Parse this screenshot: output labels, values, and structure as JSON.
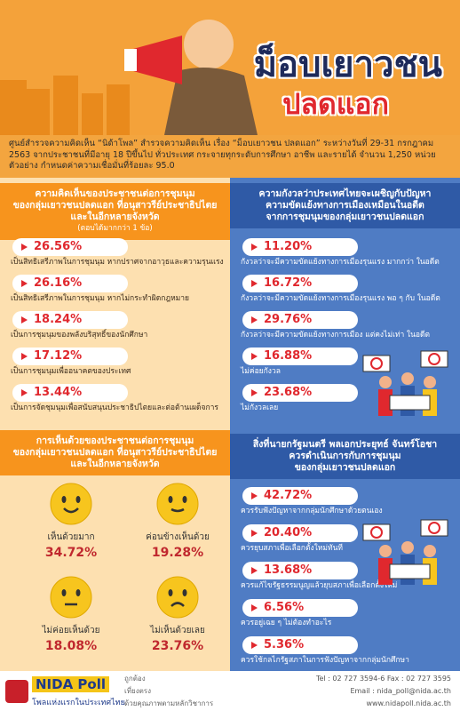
{
  "header": {
    "title": "ม็อบเยาวชน",
    "subtitle": "ปลดแอก"
  },
  "intro": "ศูนย์สำรวจความคิดเห็น “นิด้าโพล” สำรวจความคิดเห็น เรื่อง “ม็อบเยาวชน ปลดแอก” ระหว่างวันที่ 29-31 กรกฎาคม 2563 จากประชาชนที่มีอายุ 18 ปีขึ้นไป ทั่วประเทศ กระจายทุกระดับการศึกษา อาชีพ และรายได้ จำนวน 1,250 หน่วยตัวอย่าง กำหนดค่าความเชื่อมั่นที่ร้อยละ 95.0",
  "opinion": {
    "heading": [
      "ความคิดเห็นของประชาชนต่อการชุมนุม",
      "ของกลุ่มเยาวชนปลดแอก ที่อนุสาวรีย์ประชาธิปไตย",
      "และในอีกหลายจังหวัด"
    ],
    "note": "(ตอบได้มากกว่า 1 ข้อ)",
    "items": [
      {
        "value": "26.56%",
        "label": "เป็นสิทธิเสรีภาพในการชุมนุม หากปราศจากอาวุธและความรุนแรง"
      },
      {
        "value": "26.16%",
        "label": "เป็นสิทธิเสรีภาพในการชุมนุม หากไม่กระทำผิดกฎหมาย"
      },
      {
        "value": "18.24%",
        "label": "เป็นการชุมนุมของพลังบริสุทธิ์ของนักศึกษา"
      },
      {
        "value": "17.12%",
        "label": "เป็นการชุมนุมเพื่ออนาคตของประเทศ"
      },
      {
        "value": "13.44%",
        "label": "เป็นการจัดชุมนุมเพื่อสนับสนุนประชาธิปไตยและต่อต้านเผด็จการ"
      }
    ]
  },
  "agreement": {
    "heading": [
      "การเห็นด้วยของประชาชนต่อการชุมนุม",
      "ของกลุ่มเยาวชนปลดแอก ที่อนุสาวรีย์ประชาธิปไตย",
      "และในอีกหลายจังหวัด"
    ],
    "items": [
      {
        "label": "เห็นด้วยมาก",
        "value": "34.72%"
      },
      {
        "label": "ค่อนข้างเห็นด้วย",
        "value": "19.28%"
      },
      {
        "label": "ไม่ค่อยเห็นด้วย",
        "value": "18.08%"
      },
      {
        "label": "ไม่เห็นด้วยเลย",
        "value": "23.76%"
      }
    ]
  },
  "concern": {
    "heading": [
      "ความกังวลว่าประเทศไทยจะเผชิญกับปัญหา",
      "ความขัดแย้งทางการเมืองเหมือนในอดีต",
      "จากการชุมนุมของกลุ่มเยาวชนปลดแอก"
    ],
    "items": [
      {
        "value": "11.20%",
        "label": "กังวลว่าจะมีความขัดแย้งทางการเมืองรุนแรง มากกว่า ในอดีต"
      },
      {
        "value": "16.72%",
        "label": "กังวลว่าจะมีความขัดแย้งทางการเมืองรุนแรง พอ ๆ กับ ในอดีต"
      },
      {
        "value": "29.76%",
        "label": "กังวลว่าจะมีความขัดแย้งทางการเมือง แต่คงไม่เท่า ในอดีต"
      },
      {
        "value": "16.88%",
        "label": "ไม่ค่อยกังวล"
      },
      {
        "value": "23.68%",
        "label": "ไม่กังวลเลย"
      }
    ]
  },
  "pm_action": {
    "heading": [
      "สิ่งที่นายกรัฐมนตรี พลเอกประยุทธ์ จันทร์โอชา",
      "ควรดำเนินการกับการชุมนุม",
      "ของกลุ่มเยาวชนปลดแอก"
    ],
    "items": [
      {
        "value": "42.72%",
        "label": "ควรรับฟังปัญหาจากกลุ่มนักศึกษาด้วยตนเอง"
      },
      {
        "value": "20.40%",
        "label": "ควรยุบสภาเพื่อเลือกตั้งใหม่ทันที"
      },
      {
        "value": "13.68%",
        "label": "ควรแก้ไขรัฐธรรมนูญแล้วยุบสภาเพื่อเลือกตั้งใหม่"
      },
      {
        "value": "6.56%",
        "label": "ควรอยู่เฉย ๆ ไม่ต้องทำอะไร"
      },
      {
        "value": "5.36%",
        "label": "ควรใช้กลไกรัฐสภาในการฟังปัญหาจากกลุ่มนักศึกษา"
      }
    ]
  },
  "footer": {
    "brand": "NIDA Poll",
    "slogan": "โพลแห่งแรกในประเทศไทย",
    "qualities": [
      "ถูกต้อง",
      "เที่ยงตรง",
      "ด้วยคุณภาพตามหลักวิชาการ"
    ],
    "contacts": [
      "Tel : 02 727 3594-6 Fax : 02 727 3595",
      "Email : nida_poll@nida.ac.th",
      "www.nidapoll.nida.ac.th"
    ]
  }
}
